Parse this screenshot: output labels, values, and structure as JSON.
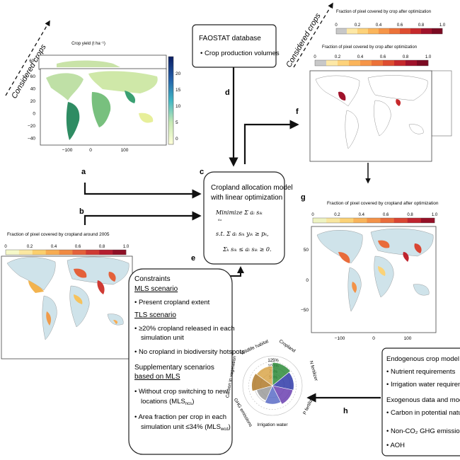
{
  "considered_crops": "Considered crops",
  "panels": {
    "a": "a",
    "b": "b",
    "c": "c",
    "d": "d",
    "e": "e",
    "f": "f",
    "g": "g",
    "h": "h"
  },
  "map_a": {
    "title": "Crop yield (t ha⁻¹)",
    "yticks": [
      "60",
      "40",
      "20",
      "0",
      "−20",
      "−40"
    ],
    "xticks": [
      "−100",
      "0",
      "100"
    ],
    "cbar_ticks": [
      "20",
      "15",
      "10",
      "5",
      "0"
    ],
    "back_ytick": "60"
  },
  "faostat": {
    "title": "FAOSTAT database",
    "item": "Crop production volumes"
  },
  "model": {
    "title_line1": "Cropland allocation model",
    "title_line2": "with linear optimization",
    "eq1": "Minimize Σ aᵢ sᵢₖ",
    "eq1_sub": "sᵢₖ",
    "eq2": "s.t.  Σ aᵢ sᵢₖ yᵢₖ ≥ pₖ,",
    "eq3": "Σₖ sᵢₖ ≤ aᵢ sᵢₖ ≥ 0."
  },
  "map_b": {
    "title": "Fraction of pixel covered by cropland around 2005",
    "ticks": [
      "0",
      "0.2",
      "0.4",
      "0.6",
      "0.8",
      "1.0"
    ],
    "colors": [
      "#f6f8c9",
      "#fbe7a1",
      "#fbcf6d",
      "#f7ac52",
      "#f08a43",
      "#e4613a",
      "#cf3a33",
      "#b51d2f",
      "#8e1026"
    ]
  },
  "map_f": {
    "title_back": "Fraction of pixel covered by crop after optimization",
    "title_front": "Fraction of pixel covered by crop after optimization",
    "ticks": [
      "0",
      "0.2",
      "0.4",
      "0.6",
      "0.8",
      "1.0"
    ],
    "colors": [
      "#c8c8c8",
      "#fde8a6",
      "#fdd27a",
      "#fbb55b",
      "#f69548",
      "#ec7239",
      "#de4d30",
      "#c6292c",
      "#a0122b",
      "#7b0a22"
    ]
  },
  "map_g": {
    "title": "Fraction of pixel covered by cropland after optimization",
    "ticks": [
      "0",
      "0.2",
      "0.4",
      "0.6",
      "0.8",
      "1.0"
    ],
    "yticks": [
      "50",
      "0",
      "−50"
    ],
    "xticks": [
      "−100",
      "0",
      "100"
    ],
    "colors": [
      "#eef3c2",
      "#f8e6a0",
      "#fbd277",
      "#f8b45b",
      "#f39248",
      "#e96c3b",
      "#d94532",
      "#bf242e",
      "#951027"
    ]
  },
  "constraints": {
    "title": "Constraints",
    "mls_heading": "MLS scenario",
    "mls_item": "Present cropland extent",
    "tls_heading": "TLS scenario",
    "tls_item1_l1": "≥20% cropland released in each",
    "tls_item1_l2": "simulation unit",
    "tls_item2": "No cropland in biodiversity hotspots",
    "supp_l1": "Supplementary scenarios",
    "supp_l2": "based on MLS",
    "supp_item1_l1": "Without crop switching to new",
    "supp_item1_l2": "locations (MLS",
    "supp_item1_sub": "ncs",
    "supp_item1_end": ")",
    "supp_item2_l1": "Area fraction per crop in each",
    "supp_item2_l2": "simulation unit ≤34% (MLS",
    "supp_item2_sub": "wcd",
    "supp_item2_end": ")"
  },
  "radial": {
    "labels": [
      "Cropland",
      "N fertilizer",
      "P fertilizer",
      "Irrigation water",
      "GHG emissions",
      "Carbon in vegetation",
      "Wildlife habitat"
    ],
    "rings": [
      "125%",
      "100%",
      "75%",
      "50%"
    ],
    "colors": {
      "cropland": "#2e8b3a",
      "n_fert": "#2f3aa8",
      "p_fert": "#6b3fb0",
      "irrigation": "#5b6cc7",
      "ghg": "#9a9a9a",
      "carbon": "#b07a2a",
      "wildlife": "#d9a64a"
    }
  },
  "exo": {
    "endo_title": "Endogenous crop model data",
    "endo_item1": "Nutrient requirements",
    "endo_item2": "Irrigation water requirement",
    "exo_title": "Exogenous data and models",
    "exo_item1": "Carbon in potential natural v",
    "exo_item2": "Non-CO₂ GHG emissions",
    "exo_item3": "AOH"
  }
}
